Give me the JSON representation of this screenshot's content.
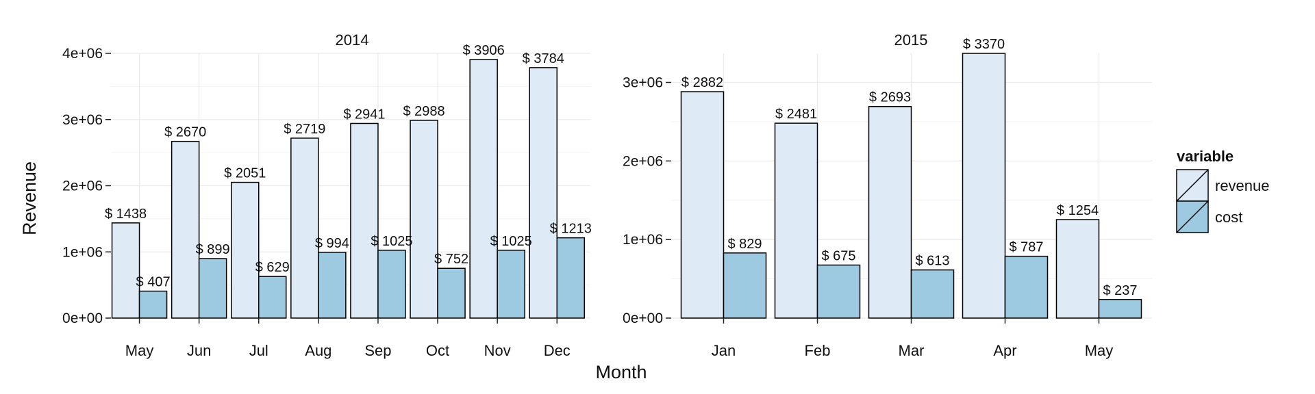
{
  "chart_data": {
    "type": "bar",
    "xlabel": "Month",
    "ylabel": "Revenue",
    "legend": {
      "title": "variable",
      "position": "right",
      "entries": [
        "revenue",
        "cost"
      ]
    },
    "colors": {
      "revenue": "#deebf7",
      "cost": "#9ecae1",
      "outline": "#000000",
      "grid": "#ebebeb"
    },
    "grid": true,
    "label_prefix": "$ ",
    "panels": [
      {
        "title": "2014",
        "ylim": [
          0,
          4000000
        ],
        "yticks": [
          0,
          1000000,
          2000000,
          3000000,
          4000000
        ],
        "ytick_labels": [
          "0e+00",
          "1e+06",
          "2e+06",
          "3e+06",
          "4e+06"
        ],
        "categories": [
          "May",
          "Jun",
          "Jul",
          "Aug",
          "Sep",
          "Oct",
          "Nov",
          "Dec"
        ],
        "series": [
          {
            "name": "revenue",
            "values": [
              1438000,
              2670000,
              2051000,
              2719000,
              2941000,
              2988000,
              3906000,
              3784000
            ],
            "labels": [
              "1438",
              "2670",
              "2051",
              "2719",
              "2941",
              "2988",
              "3906",
              "3784"
            ]
          },
          {
            "name": "cost",
            "values": [
              407000,
              899000,
              629000,
              994000,
              1025000,
              752000,
              1025000,
              1213000
            ],
            "labels": [
              "407",
              "899",
              "629",
              "994",
              "1025",
              "752",
              "1025",
              "1213"
            ]
          }
        ]
      },
      {
        "title": "2015",
        "ylim": [
          0,
          3370000
        ],
        "yticks": [
          0,
          1000000,
          2000000,
          3000000
        ],
        "ytick_labels": [
          "0e+00",
          "1e+06",
          "2e+06",
          "3e+06"
        ],
        "categories": [
          "Jan",
          "Feb",
          "Mar",
          "Apr",
          "May"
        ],
        "series": [
          {
            "name": "revenue",
            "values": [
              2882000,
              2481000,
              2693000,
              3370000,
              1254000
            ],
            "labels": [
              "2882",
              "2481",
              "2693",
              "3370",
              "1254"
            ]
          },
          {
            "name": "cost",
            "values": [
              829000,
              675000,
              613000,
              787000,
              237000
            ],
            "labels": [
              "829",
              "675",
              "613",
              "787",
              "237"
            ]
          }
        ]
      }
    ]
  }
}
